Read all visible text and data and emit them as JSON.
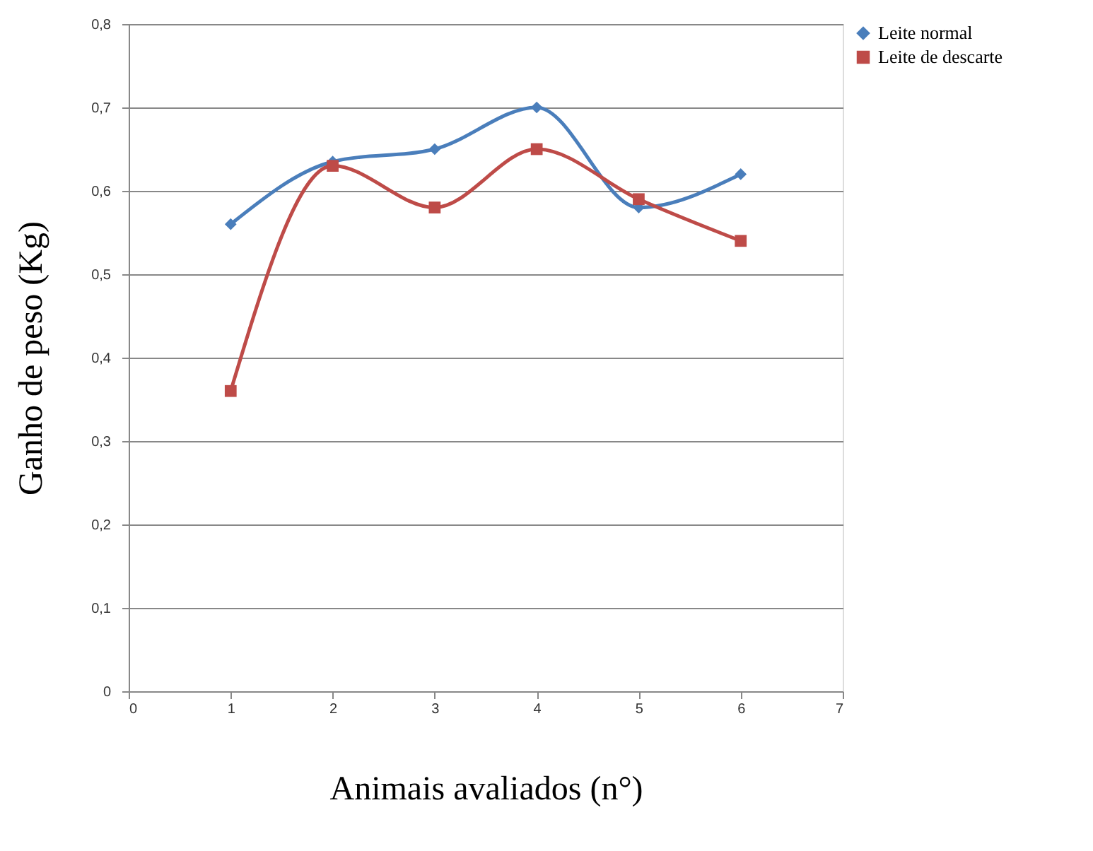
{
  "chart_data": {
    "type": "line",
    "xlabel": "Animais avaliados (n°)",
    "ylabel": "Ganho de peso  (Kg)",
    "x": [
      1,
      2,
      3,
      4,
      5,
      6
    ],
    "series": [
      {
        "name": "Leite normal",
        "color": "#4a7ebb",
        "marker": "diamond",
        "values": [
          0.56,
          0.635,
          0.65,
          0.7,
          0.58,
          0.62
        ]
      },
      {
        "name": "Leite de descarte",
        "color": "#be4b48",
        "marker": "square",
        "values": [
          0.36,
          0.63,
          0.58,
          0.65,
          0.59,
          0.54
        ]
      }
    ],
    "xlim": [
      0,
      7
    ],
    "xticks": [
      0,
      1,
      2,
      3,
      4,
      5,
      6,
      7
    ],
    "ylim": [
      0,
      0.8
    ],
    "yticks": [
      0,
      {
        "value": 0.1,
        "label": "0,1"
      },
      {
        "value": 0.2,
        "label": "0,2"
      },
      {
        "value": 0.3,
        "label": "0,3"
      },
      {
        "value": 0.4,
        "label": "0,4"
      },
      {
        "value": 0.5,
        "label": "0,5"
      },
      {
        "value": 0.6,
        "label": "0,6"
      },
      {
        "value": 0.7,
        "label": "0,7"
      },
      {
        "value": 0.8,
        "label": "0,8"
      }
    ],
    "grid": "y",
    "legend": "right",
    "line_style": "solid"
  }
}
